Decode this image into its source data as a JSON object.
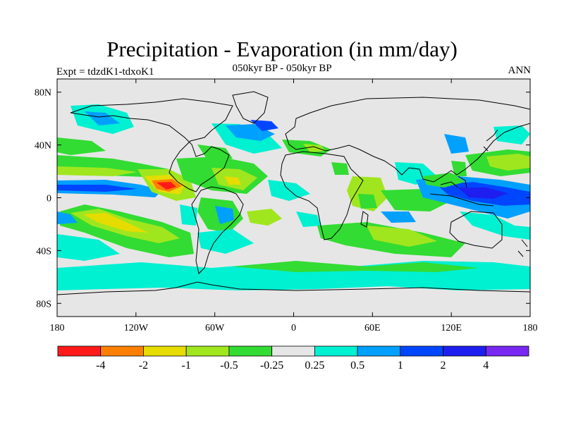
{
  "title": "Precipitation - Evaporation (in mm/day)",
  "subtitle": "050kyr BP - 050kyr BP",
  "left_label": "Expt = tdzdK1-tdxoK1",
  "right_label": "ANN",
  "map": {
    "lat_ticks": [
      "80N",
      "40N",
      "0",
      "40S",
      "80S"
    ],
    "lat_values": [
      80,
      40,
      0,
      -40,
      -80
    ],
    "lon_ticks": [
      "180",
      "120W",
      "60W",
      "0",
      "60E",
      "120E",
      "180"
    ],
    "lon_values": [
      -180,
      -120,
      -60,
      0,
      60,
      120,
      180
    ],
    "lat_range": [
      -90,
      90
    ],
    "lon_range": [
      -180,
      180
    ],
    "background_color": "#e6e6e6"
  },
  "colorbar": {
    "colors": [
      "#ff1a1a",
      "#ff8000",
      "#e6dc00",
      "#a0e61e",
      "#32dc32",
      "#e6e6e6",
      "#00f0d2",
      "#00a0ff",
      "#0046ff",
      "#1e1ef0",
      "#7828f0"
    ],
    "labels": [
      "-4",
      "-2",
      "-1",
      "-0.5",
      "-0.25",
      "0.25",
      "0.5",
      "1",
      "2",
      "4"
    ]
  }
}
